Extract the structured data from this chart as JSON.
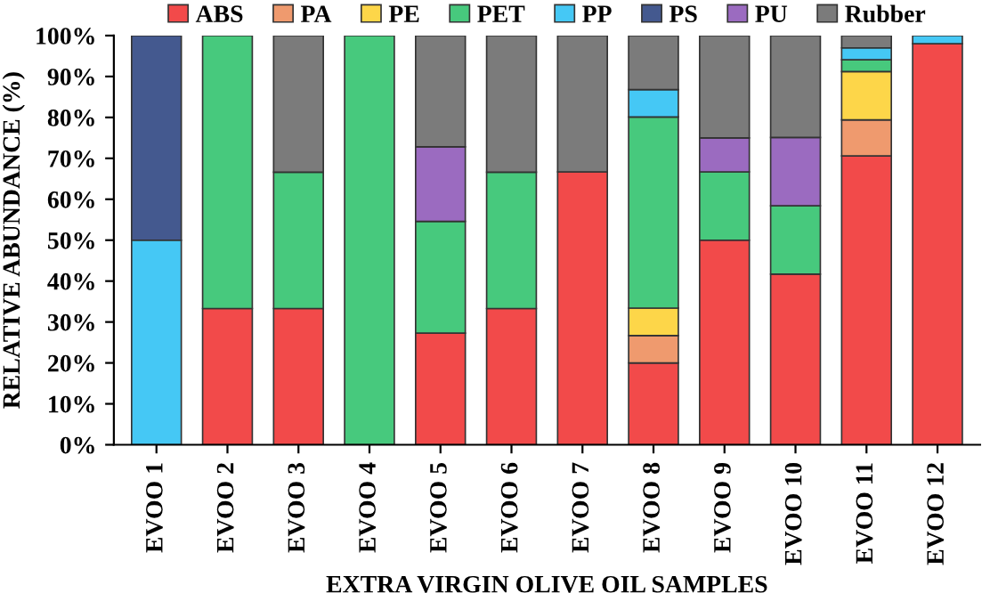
{
  "chart_data": {
    "type": "bar",
    "stacked": true,
    "xlabel": "EXTRA VIRGIN OLIVE OIL SAMPLES",
    "ylabel": "RELATIVE ABUNDANCE (%)",
    "categories": [
      "EVOO 1",
      "EVOO 2",
      "EVOO 3",
      "EVOO 4",
      "EVOO 5",
      "EVOO 6",
      "EVOO 7",
      "EVOO 8",
      "EVOO 9",
      "EVOO 10",
      "EVOO 11",
      "EVOO 12"
    ],
    "series": [
      {
        "name": "ABS",
        "color": "#f24a4a",
        "values": [
          0,
          33.3,
          33.3,
          0,
          27.3,
          33.3,
          66.7,
          20,
          50,
          41.7,
          70.6,
          98
        ]
      },
      {
        "name": "PA",
        "color": "#ef9a6e",
        "values": [
          0,
          0,
          0,
          0,
          0,
          0,
          0,
          6.7,
          0,
          0,
          8.8,
          0
        ]
      },
      {
        "name": "PE",
        "color": "#fdd649",
        "values": [
          0,
          0,
          0,
          0,
          0,
          0,
          0,
          6.7,
          0,
          0,
          11.8,
          0
        ]
      },
      {
        "name": "PET",
        "color": "#47c97d",
        "values": [
          0,
          66.7,
          33.3,
          100,
          27.3,
          33.3,
          0,
          46.7,
          16.7,
          16.7,
          2.9,
          0
        ]
      },
      {
        "name": "PP",
        "color": "#45c8f5",
        "values": [
          50,
          0,
          0,
          0,
          0,
          0,
          0,
          6.7,
          0,
          0,
          2.9,
          2
        ]
      },
      {
        "name": "PS",
        "color": "#44598f",
        "values": [
          50,
          0,
          0,
          0,
          0,
          0,
          0,
          0,
          0,
          0,
          0,
          0
        ]
      },
      {
        "name": "PU",
        "color": "#9b6bc0",
        "values": [
          0,
          0,
          0,
          0,
          18.2,
          0,
          0,
          0,
          8.3,
          16.7,
          0,
          0
        ]
      },
      {
        "name": "Rubber",
        "color": "#7b7b7b",
        "values": [
          0,
          0,
          33.4,
          0,
          27.2,
          33.4,
          33.3,
          13.2,
          25,
          24.9,
          3,
          0
        ]
      }
    ],
    "ylim": [
      0,
      100
    ],
    "yticks": [
      {
        "value": 0,
        "label": "0%"
      },
      {
        "value": 10,
        "label": "10%"
      },
      {
        "value": 20,
        "label": "20%"
      },
      {
        "value": 30,
        "label": "30%"
      },
      {
        "value": 40,
        "label": "40%"
      },
      {
        "value": 50,
        "label": "50%"
      },
      {
        "value": 60,
        "label": "60%"
      },
      {
        "value": 70,
        "label": "70%"
      },
      {
        "value": 80,
        "label": "80%"
      },
      {
        "value": 90,
        "label": "90%"
      },
      {
        "value": 100,
        "label": "100%"
      }
    ],
    "legend": "top",
    "grid": false
  }
}
